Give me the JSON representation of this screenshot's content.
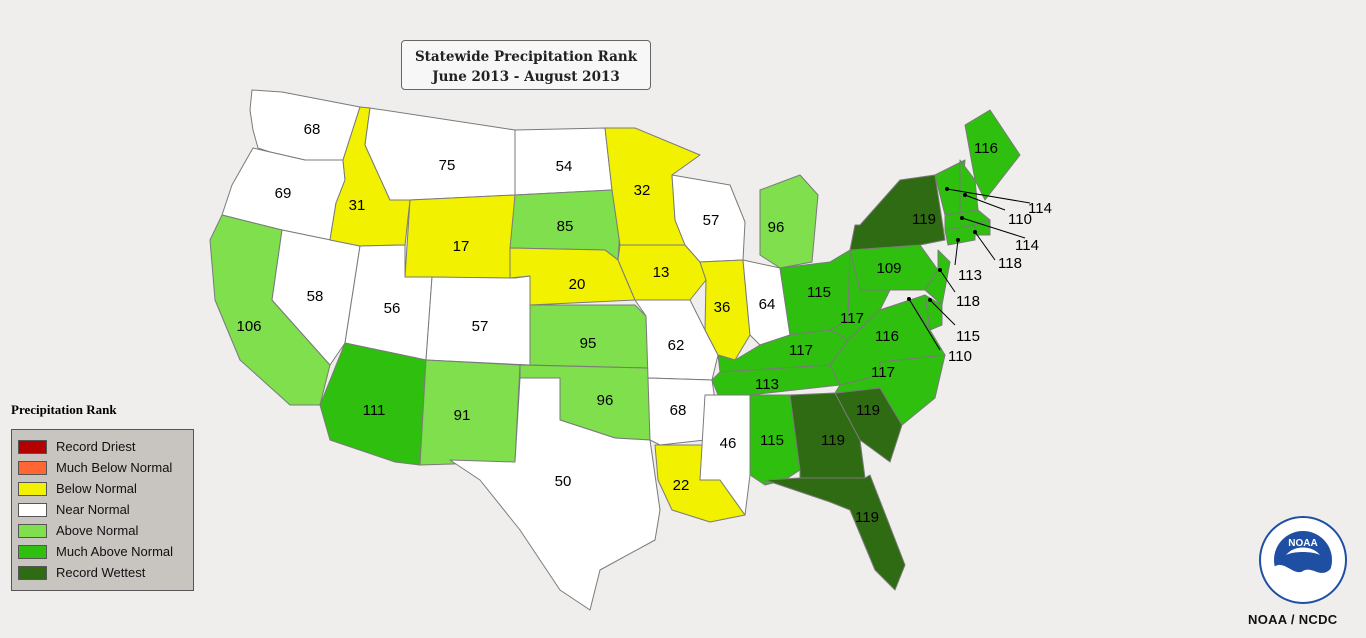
{
  "title": {
    "line1": "Statewide Precipitation Rank",
    "line2": "June 2013 - August 2013"
  },
  "legend": {
    "title": "Precipitation Rank",
    "items": [
      {
        "label": "Record Driest",
        "color": "#b30000"
      },
      {
        "label": "Much Below Normal",
        "color": "#ff6633"
      },
      {
        "label": "Below Normal",
        "color": "#f2f200"
      },
      {
        "label": "Near Normal",
        "color": "#ffffff"
      },
      {
        "label": "Above Normal",
        "color": "#7fdf4c"
      },
      {
        "label": "Much Above Normal",
        "color": "#2ebf0f"
      },
      {
        "label": "Record Wettest",
        "color": "#2f6b12"
      }
    ]
  },
  "states": [
    {
      "name": "Washington",
      "rank": "68",
      "category": "Near Normal"
    },
    {
      "name": "Oregon",
      "rank": "69",
      "category": "Near Normal"
    },
    {
      "name": "California",
      "rank": "106",
      "category": "Above Normal"
    },
    {
      "name": "Nevada",
      "rank": "58",
      "category": "Near Normal"
    },
    {
      "name": "Idaho",
      "rank": "31",
      "category": "Below Normal"
    },
    {
      "name": "Montana",
      "rank": "75",
      "category": "Near Normal"
    },
    {
      "name": "Wyoming",
      "rank": "17",
      "category": "Below Normal"
    },
    {
      "name": "Utah",
      "rank": "56",
      "category": "Near Normal"
    },
    {
      "name": "Colorado",
      "rank": "57",
      "category": "Near Normal"
    },
    {
      "name": "Arizona",
      "rank": "111",
      "category": "Much Above Normal"
    },
    {
      "name": "New Mexico",
      "rank": "91",
      "category": "Above Normal"
    },
    {
      "name": "North Dakota",
      "rank": "54",
      "category": "Near Normal"
    },
    {
      "name": "South Dakota",
      "rank": "85",
      "category": "Above Normal"
    },
    {
      "name": "Nebraska",
      "rank": "20",
      "category": "Below Normal"
    },
    {
      "name": "Kansas",
      "rank": "95",
      "category": "Above Normal"
    },
    {
      "name": "Oklahoma",
      "rank": "96",
      "category": "Above Normal"
    },
    {
      "name": "Texas",
      "rank": "50",
      "category": "Near Normal"
    },
    {
      "name": "Minnesota",
      "rank": "32",
      "category": "Below Normal"
    },
    {
      "name": "Iowa",
      "rank": "13",
      "category": "Below Normal"
    },
    {
      "name": "Missouri",
      "rank": "62",
      "category": "Near Normal"
    },
    {
      "name": "Arkansas",
      "rank": "68",
      "category": "Near Normal"
    },
    {
      "name": "Louisiana",
      "rank": "22",
      "category": "Below Normal"
    },
    {
      "name": "Wisconsin",
      "rank": "57",
      "category": "Near Normal"
    },
    {
      "name": "Illinois",
      "rank": "36",
      "category": "Below Normal"
    },
    {
      "name": "Michigan",
      "rank": "96",
      "category": "Above Normal"
    },
    {
      "name": "Indiana",
      "rank": "64",
      "category": "Near Normal"
    },
    {
      "name": "Ohio",
      "rank": "115",
      "category": "Much Above Normal"
    },
    {
      "name": "Kentucky",
      "rank": "117",
      "category": "Much Above Normal"
    },
    {
      "name": "Tennessee",
      "rank": "113",
      "category": "Much Above Normal"
    },
    {
      "name": "Mississippi",
      "rank": "46",
      "category": "Near Normal"
    },
    {
      "name": "Alabama",
      "rank": "115",
      "category": "Much Above Normal"
    },
    {
      "name": "Georgia",
      "rank": "119",
      "category": "Record Wettest"
    },
    {
      "name": "Florida",
      "rank": "119",
      "category": "Record Wettest"
    },
    {
      "name": "South Carolina",
      "rank": "119",
      "category": "Record Wettest"
    },
    {
      "name": "North Carolina",
      "rank": "117",
      "category": "Much Above Normal"
    },
    {
      "name": "Virginia",
      "rank": "116",
      "category": "Much Above Normal"
    },
    {
      "name": "West Virginia",
      "rank": "117",
      "category": "Much Above Normal"
    },
    {
      "name": "Pennsylvania",
      "rank": "109",
      "category": "Much Above Normal"
    },
    {
      "name": "New York",
      "rank": "119",
      "category": "Record Wettest"
    },
    {
      "name": "Maine",
      "rank": "116",
      "category": "Much Above Normal"
    },
    {
      "name": "Vermont",
      "rank": "114",
      "category": "Much Above Normal"
    },
    {
      "name": "New Hampshire",
      "rank": "110",
      "category": "Much Above Normal"
    },
    {
      "name": "Massachusetts",
      "rank": "114",
      "category": "Much Above Normal"
    },
    {
      "name": "Rhode Island",
      "rank": "118",
      "category": "Much Above Normal"
    },
    {
      "name": "Connecticut",
      "rank": "113",
      "category": "Much Above Normal"
    },
    {
      "name": "New Jersey",
      "rank": "118",
      "category": "Much Above Normal"
    },
    {
      "name": "Delaware",
      "rank": "115",
      "category": "Much Above Normal"
    },
    {
      "name": "Maryland",
      "rank": "110",
      "category": "Much Above Normal"
    }
  ],
  "credit": "NOAA / NCDC",
  "logo": {
    "text": "NOAA",
    "icon": "noaa-logo-icon"
  }
}
